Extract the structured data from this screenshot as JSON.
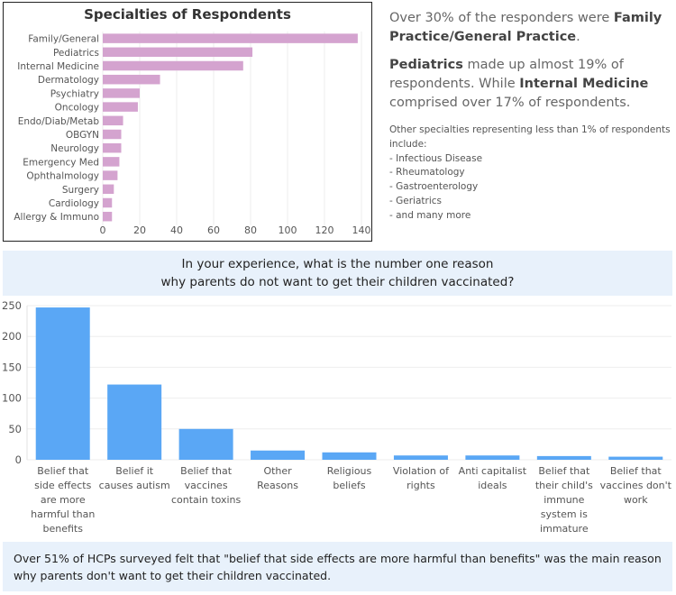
{
  "specialties": {
    "title": "Specialties of Respondents",
    "chart_data": {
      "type": "bar",
      "orientation": "horizontal",
      "title": "Specialties of Respondents",
      "categories": [
        "Family/General",
        "Pediatrics",
        "Internal Medicine",
        "Dermatology",
        "Psychiatry",
        "Oncology",
        "Endo/Diab/Metab",
        "OBGYN",
        "Neurology",
        "Emergency Med",
        "Ophthalmology",
        "Surgery",
        "Cardiology",
        "Allergy & Immuno"
      ],
      "values": [
        138,
        81,
        76,
        31,
        20,
        19,
        11,
        10,
        10,
        9,
        8,
        6,
        5,
        5
      ],
      "xlim": [
        0,
        140
      ],
      "xticks": [
        0,
        20,
        40,
        60,
        80,
        100,
        120,
        140
      ],
      "color": "#d4a3cf",
      "grid": true
    }
  },
  "info": {
    "p1_pre": "Over 30% of the responders were ",
    "p1_bold": "Family Practice/General Practice",
    "p1_post": ".",
    "p2_bold1": "Pediatrics",
    "p2_mid": " made up almost 19% of respondents. While ",
    "p2_bold2": "Internal Medicine",
    "p2_post": " comprised over 17% of respondents.",
    "other_intro": "Other specialties representing less than 1% of respondents include:",
    "other_items": [
      "- Infectious Disease",
      "- Rheumatology",
      "- Gastroenterology",
      "- Geriatrics",
      "- and many more"
    ]
  },
  "question": {
    "line1": "In your experience, what is the number one reason",
    "line2": "why parents do not want to get their children vaccinated?"
  },
  "reasons": {
    "chart_data": {
      "type": "bar",
      "categories": [
        [
          "Belief that",
          "side effects",
          "are more",
          "harmful than",
          "benefits"
        ],
        [
          "Belief it",
          "causes autism"
        ],
        [
          "Belief that",
          "vaccines",
          "contain toxins"
        ],
        [
          "Other",
          "Reasons"
        ],
        [
          "Religious",
          "beliefs"
        ],
        [
          "Violation of",
          "rights"
        ],
        [
          "Anti capitalist",
          "ideals"
        ],
        [
          "Belief that",
          "their child's",
          "immune",
          "system is",
          "immature"
        ],
        [
          "Belief that",
          "vaccines don't",
          "work"
        ]
      ],
      "values": [
        247,
        122,
        50,
        15,
        12,
        7,
        7,
        6,
        5
      ],
      "ylim": [
        0,
        250
      ],
      "yticks": [
        0,
        50,
        100,
        150,
        200,
        250
      ],
      "color": "#5aa7f5",
      "grid": true
    }
  },
  "footer": {
    "text": "Over 51% of HCPs surveyed felt that \"belief that side effects are more harmful than benefits\" was the main reason why parents don't want to get their children vaccinated."
  }
}
